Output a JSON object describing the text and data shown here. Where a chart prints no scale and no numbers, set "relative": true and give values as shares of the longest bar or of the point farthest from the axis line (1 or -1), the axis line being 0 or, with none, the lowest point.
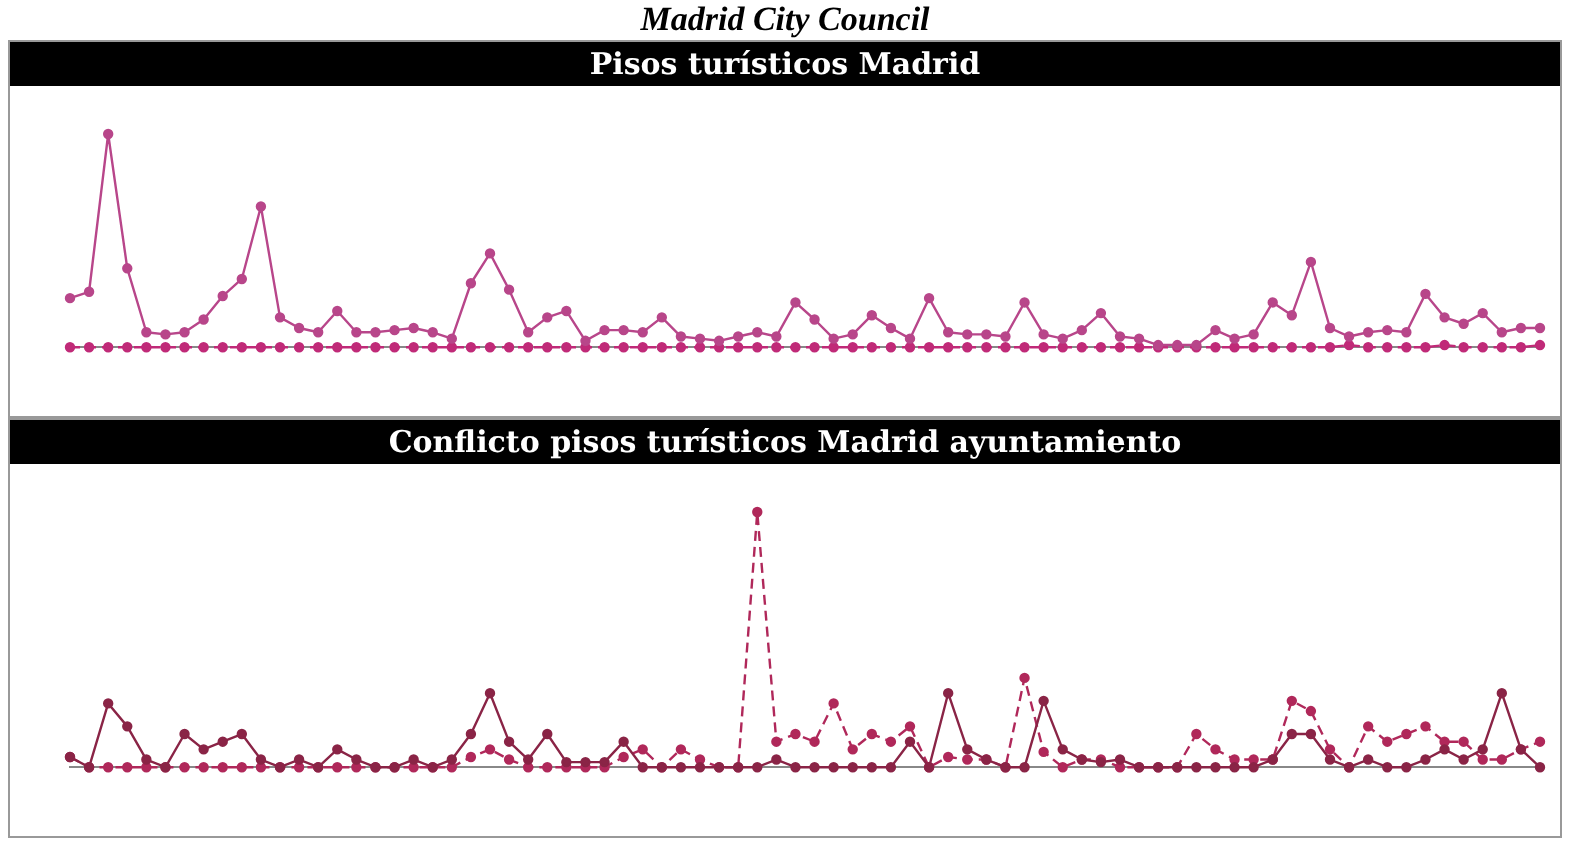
{
  "chart_data": [
    {
      "type": "line",
      "title": "Pisos turísticos Madrid",
      "annotations": [
        "Madrid City Council"
      ],
      "relative": true,
      "marker": "circle",
      "categories": [
        null,
        null,
        null,
        null,
        null,
        null,
        null,
        null,
        null,
        null,
        null,
        null,
        null,
        null,
        null,
        null,
        null,
        null,
        null,
        null,
        null,
        null,
        null,
        null,
        null,
        null,
        null,
        null,
        null,
        null,
        null,
        null,
        null,
        null,
        null,
        null,
        null,
        null,
        null,
        null,
        null,
        null,
        null,
        null,
        null,
        null,
        null,
        null,
        null,
        null,
        null,
        null,
        null,
        null,
        null,
        null,
        null,
        null,
        null,
        null,
        null,
        null,
        null,
        null,
        null,
        null,
        null,
        null,
        null,
        null,
        null,
        null,
        null,
        null,
        null,
        null,
        null,
        null
      ],
      "series": [
        {
          "color": "#b8468a",
          "line_style": "solid",
          "values": [
            0.23,
            0.26,
            1,
            0.37,
            0.07,
            0.06,
            0.07,
            0.13,
            0.24,
            0.32,
            0.66,
            0.14,
            0.09,
            0.07,
            0.17,
            0.07,
            0.07,
            0.08,
            0.09,
            0.07,
            0.04,
            0.3,
            0.44,
            0.27,
            0.07,
            0.14,
            0.17,
            0.03,
            0.08,
            0.08,
            0.07,
            0.14,
            0.05,
            0.04,
            0.03,
            0.05,
            0.07,
            0.05,
            0.21,
            0.13,
            0.04,
            0.06,
            0.15,
            0.09,
            0.04,
            0.23,
            0.07,
            0.06,
            0.06,
            0.05,
            0.21,
            0.06,
            0.04,
            0.08,
            0.16,
            0.05,
            0.04,
            0.01,
            0.01,
            0.01,
            0.08,
            0.04,
            0.06,
            0.21,
            0.15,
            0.4,
            0.09,
            0.05,
            0.07,
            0.08,
            0.07,
            0.25,
            0.14,
            0.11,
            0.16,
            0.07,
            0.09,
            0.09
          ]
        },
        {
          "color": "#c02a78",
          "line_style": "dashed",
          "values": [
            0,
            0,
            0,
            0,
            0,
            0,
            0,
            0,
            0,
            0,
            0,
            0,
            0,
            0,
            0,
            0,
            0,
            0,
            0,
            0,
            0,
            0,
            0,
            0,
            0,
            0,
            0,
            0,
            0,
            0,
            0,
            0,
            0,
            0,
            0,
            0,
            0,
            0,
            0,
            0,
            0,
            0,
            0,
            0,
            0,
            0,
            0,
            0,
            0,
            0,
            0,
            0,
            0,
            0,
            0,
            0,
            0,
            0,
            0,
            0,
            0,
            0,
            0,
            0,
            0,
            0,
            0,
            0.01,
            0,
            0,
            0,
            0,
            0.01,
            0,
            0,
            0,
            0,
            0.01
          ]
        }
      ]
    },
    {
      "type": "line",
      "title": "Conflicto pisos turísticos Madrid ayuntamiento",
      "relative": true,
      "marker": "circle",
      "categories": [
        null,
        null,
        null,
        null,
        null,
        null,
        null,
        null,
        null,
        null,
        null,
        null,
        null,
        null,
        null,
        null,
        null,
        null,
        null,
        null,
        null,
        null,
        null,
        null,
        null,
        null,
        null,
        null,
        null,
        null,
        null,
        null,
        null,
        null,
        null,
        null,
        null,
        null,
        null,
        null,
        null,
        null,
        null,
        null,
        null,
        null,
        null,
        null,
        null,
        null,
        null,
        null,
        null,
        null,
        null,
        null,
        null,
        null,
        null,
        null,
        null,
        null,
        null,
        null,
        null,
        null,
        null,
        null,
        null,
        null,
        null,
        null,
        null,
        null,
        null,
        null,
        null,
        null
      ],
      "series": [
        {
          "color": "#8a2446",
          "line_style": "solid",
          "values": [
            0.04,
            0,
            0.25,
            0.16,
            0.03,
            0,
            0.13,
            0.07,
            0.1,
            0.13,
            0.03,
            0,
            0.03,
            0,
            0.07,
            0.03,
            0,
            0,
            0.03,
            0,
            0.03,
            0.13,
            0.29,
            0.1,
            0.03,
            0.13,
            0.02,
            0.02,
            0.02,
            0.1,
            0,
            0,
            0,
            0,
            0,
            0,
            0,
            0.03,
            0,
            0,
            0,
            0,
            0,
            0,
            0.1,
            0,
            0.29,
            0.07,
            0.03,
            0,
            0,
            0.26,
            0.07,
            0.03,
            0.02,
            0.03,
            0,
            0,
            0,
            0,
            0,
            0,
            0,
            0.03,
            0.13,
            0.13,
            0.03,
            0,
            0.03,
            0,
            0,
            0.03,
            0.07,
            0.03,
            0.07,
            0.29,
            0.07,
            0
          ]
        },
        {
          "color": "#b0285a",
          "line_style": "dashed",
          "values": [
            0.04,
            0,
            0,
            0,
            0,
            0,
            0,
            0,
            0,
            0,
            0,
            0,
            0,
            0,
            0,
            0,
            0,
            0,
            0,
            0,
            0,
            0.04,
            0.07,
            0.03,
            0,
            0,
            0,
            0,
            0,
            0.04,
            0.07,
            0,
            0.07,
            0.03,
            0,
            0,
            1,
            0.1,
            0.13,
            0.1,
            0.25,
            0.07,
            0.13,
            0.1,
            0.16,
            0,
            0.04,
            0.03,
            0.03,
            0,
            0.35,
            0.06,
            0,
            0.03,
            0.03,
            0,
            0,
            0,
            0,
            0.13,
            0.07,
            0.03,
            0.03,
            0.03,
            0.26,
            0.22,
            0.07,
            0,
            0.16,
            0.1,
            0.13,
            0.16,
            0.1,
            0.1,
            0.03,
            0.03,
            0.07,
            0.1
          ]
        }
      ]
    }
  ]
}
